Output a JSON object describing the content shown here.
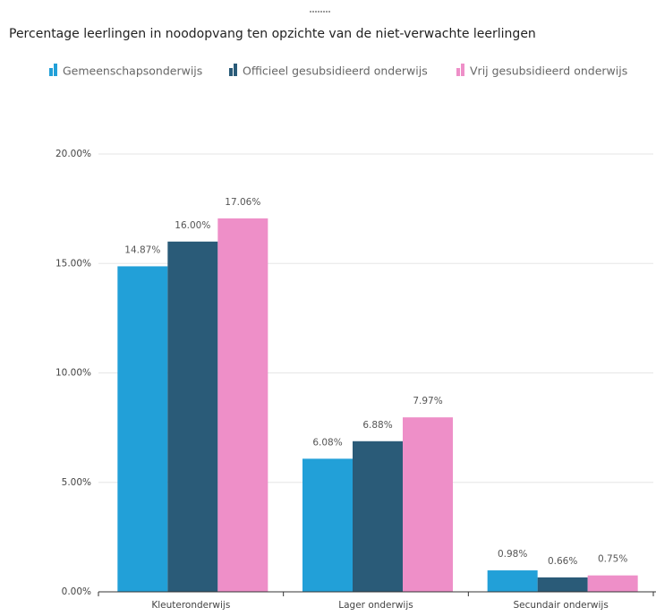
{
  "chart_data": {
    "type": "bar",
    "title": "Percentage leerlingen in noodopvang ten opzichte van de niet-verwachte leerlingen",
    "categories": [
      "Kleuteronderwijs",
      "Lager onderwijs",
      "Secundair onderwijs"
    ],
    "series": [
      {
        "name": "Gemeenschapsonderwijs",
        "color": "#22a0d8",
        "values": [
          14.87,
          6.08,
          0.98
        ],
        "value_labels": [
          "14.87%",
          "6.08%",
          "0.98%"
        ]
      },
      {
        "name": "Officieel gesubsidieerd onderwijs",
        "color": "#2a5b78",
        "values": [
          16.0,
          6.88,
          0.66
        ],
        "value_labels": [
          "16.00%",
          "6.88%",
          "0.66%"
        ]
      },
      {
        "name": "Vrij gesubsidieerd onderwijs",
        "color": "#ee8fc8",
        "values": [
          17.06,
          7.97,
          0.75
        ],
        "value_labels": [
          "17.06%",
          "7.97%",
          "0.75%"
        ]
      }
    ],
    "ylim": [
      0,
      20
    ],
    "yticks": [
      {
        "value": 0,
        "label": "0.00%"
      },
      {
        "value": 5,
        "label": "5.00%"
      },
      {
        "value": 10,
        "label": "10.00%"
      },
      {
        "value": 15,
        "label": "15.00%"
      },
      {
        "value": 20,
        "label": "20.00%"
      }
    ],
    "grid": true,
    "legend": "top"
  }
}
